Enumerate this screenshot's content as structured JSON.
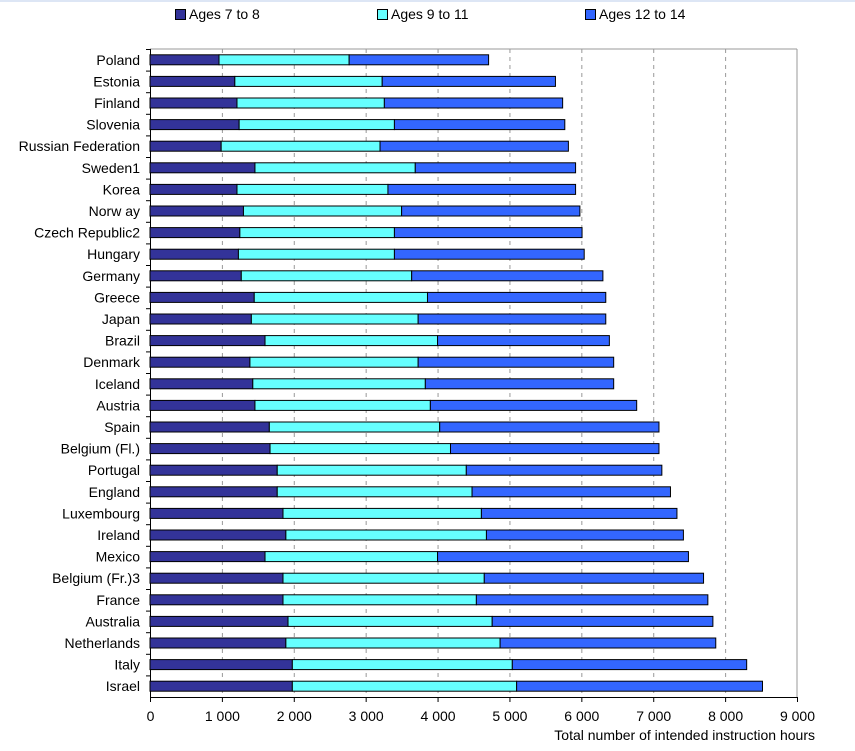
{
  "chart_data": {
    "type": "bar",
    "orientation": "horizontal",
    "stacked": true,
    "title": "",
    "xlabel": "Total number of intended instruction hours",
    "ylabel": "",
    "xlim": [
      0,
      9000
    ],
    "xticks": [
      0,
      1000,
      2000,
      3000,
      4000,
      5000,
      6000,
      7000,
      8000,
      9000
    ],
    "xtick_labels": [
      "0",
      "1 000",
      "2 000",
      "3 000",
      "4 000",
      "5 000",
      "6 000",
      "7 000",
      "8 000",
      "9 000"
    ],
    "grid": "vertical dashed",
    "legend_position": "top",
    "categories": [
      "Poland",
      "Estonia",
      "Finland",
      "Slovenia",
      "Russian Federation",
      "Sweden1",
      "Korea",
      "Norw ay",
      "Czech Republic2",
      "Hungary",
      "Germany",
      "Greece",
      "Japan",
      "Brazil",
      "Denmark",
      "Iceland",
      "Austria",
      "Spain",
      "Belgium (Fl.)",
      "Portugal",
      "England",
      "Luxembourg",
      "Ireland",
      "Mexico",
      "Belgium (Fr.)3",
      "France",
      "Australia",
      "Netherlands",
      "Italy",
      "Israel"
    ],
    "series": [
      {
        "name": "Ages 7 to 8",
        "color": "#333399",
        "values": [
          960,
          1180,
          1210,
          1240,
          990,
          1460,
          1210,
          1300,
          1250,
          1230,
          1270,
          1450,
          1410,
          1600,
          1390,
          1430,
          1460,
          1660,
          1670,
          1770,
          1770,
          1850,
          1890,
          1600,
          1850,
          1850,
          1920,
          1890,
          1980,
          1980
        ]
      },
      {
        "name": "Ages 9 to 11",
        "color": "#66ffff",
        "values": [
          1810,
          2050,
          2050,
          2160,
          2210,
          2230,
          2100,
          2200,
          2150,
          2170,
          2370,
          2410,
          2320,
          2400,
          2340,
          2400,
          2440,
          2370,
          2510,
          2630,
          2710,
          2760,
          2790,
          2400,
          2800,
          2690,
          2840,
          2980,
          3060,
          3120
        ]
      },
      {
        "name": "Ages 12 to 14",
        "color": "#3366ff",
        "values": [
          1940,
          2410,
          2480,
          2370,
          2620,
          2230,
          2610,
          2480,
          2610,
          2640,
          2660,
          2480,
          2610,
          2390,
          2720,
          2620,
          2870,
          3050,
          2900,
          2720,
          2760,
          2720,
          2740,
          3490,
          3050,
          3220,
          3070,
          3000,
          3260,
          3420
        ]
      }
    ]
  }
}
